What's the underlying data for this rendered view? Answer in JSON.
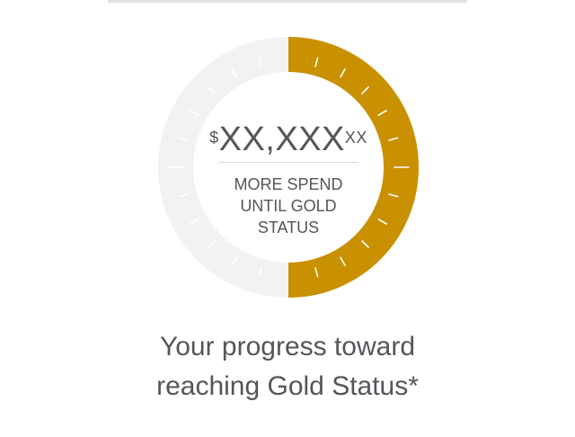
{
  "gauge": {
    "progress_fraction": 0.5,
    "fill_color": "#c99100",
    "track_color": "#f2f2f2",
    "tick_color": "#ffffff",
    "amount_prefix": "$",
    "amount_main": "XX,XXX",
    "amount_cents": "XX",
    "caption_line1": "MORE SPEND",
    "caption_line2": "UNTIL GOLD",
    "caption_line3": "STATUS"
  },
  "footer": {
    "line1": "Your progress toward",
    "line2": "reaching Gold Status*"
  }
}
